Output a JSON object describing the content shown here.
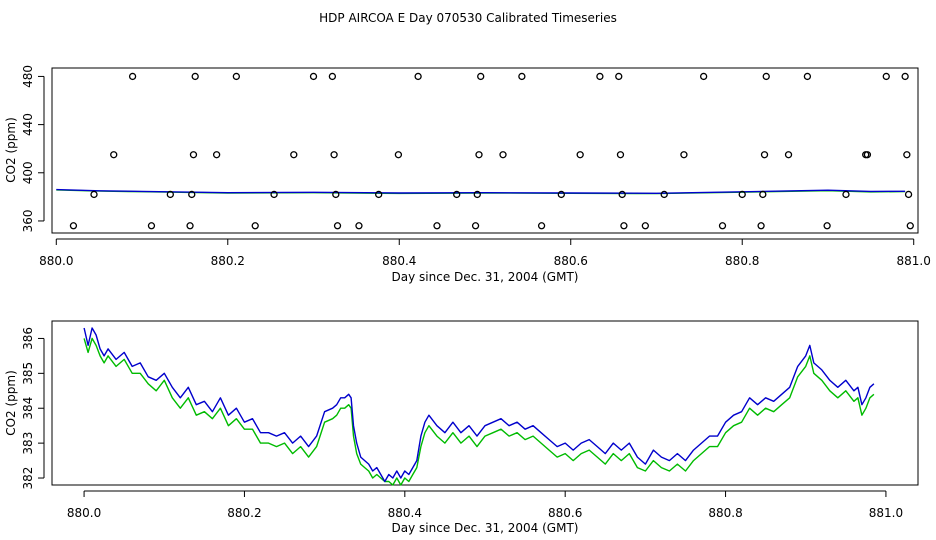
{
  "title": "HDP AIRCOA E  Day 070530  Calibrated Timeseries",
  "colors": {
    "blue": "#0000cc",
    "green": "#00bb00",
    "black": "#000000"
  },
  "chart_data": [
    {
      "type": "scatter",
      "xlabel": "Day since Dec. 31, 2004 (GMT)",
      "ylabel": "CO2 (ppm)",
      "xlim": [
        879.995,
        881.005
      ],
      "ylim": [
        350,
        487
      ],
      "xticks": [
        880.0,
        880.2,
        880.4,
        880.6,
        880.8,
        881.0
      ],
      "xtick_labels": [
        "880.0",
        "880.2",
        "880.4",
        "880.6",
        "880.8",
        "881.0"
      ],
      "yticks": [
        360,
        400,
        440,
        480
      ],
      "ytick_labels": [
        "360",
        "400",
        "440",
        "480"
      ],
      "points": [
        {
          "x": 880.02,
          "y": 356
        },
        {
          "x": 880.044,
          "y": 382
        },
        {
          "x": 880.067,
          "y": 415
        },
        {
          "x": 880.089,
          "y": 480
        },
        {
          "x": 880.111,
          "y": 356
        },
        {
          "x": 880.133,
          "y": 382
        },
        {
          "x": 880.156,
          "y": 356
        },
        {
          "x": 880.158,
          "y": 382
        },
        {
          "x": 880.16,
          "y": 415
        },
        {
          "x": 880.162,
          "y": 480
        },
        {
          "x": 880.187,
          "y": 415
        },
        {
          "x": 880.21,
          "y": 480
        },
        {
          "x": 880.232,
          "y": 356
        },
        {
          "x": 880.254,
          "y": 382
        },
        {
          "x": 880.277,
          "y": 415
        },
        {
          "x": 880.3,
          "y": 480
        },
        {
          "x": 880.322,
          "y": 480
        },
        {
          "x": 880.324,
          "y": 415
        },
        {
          "x": 880.326,
          "y": 382
        },
        {
          "x": 880.328,
          "y": 356
        },
        {
          "x": 880.353,
          "y": 356
        },
        {
          "x": 880.376,
          "y": 382
        },
        {
          "x": 880.399,
          "y": 415
        },
        {
          "x": 880.422,
          "y": 480
        },
        {
          "x": 880.444,
          "y": 356
        },
        {
          "x": 880.467,
          "y": 382
        },
        {
          "x": 880.489,
          "y": 356
        },
        {
          "x": 880.491,
          "y": 382
        },
        {
          "x": 880.493,
          "y": 415
        },
        {
          "x": 880.495,
          "y": 480
        },
        {
          "x": 880.521,
          "y": 415
        },
        {
          "x": 880.543,
          "y": 480
        },
        {
          "x": 880.566,
          "y": 356
        },
        {
          "x": 880.589,
          "y": 382
        },
        {
          "x": 880.611,
          "y": 415
        },
        {
          "x": 880.634,
          "y": 480
        },
        {
          "x": 880.656,
          "y": 480
        },
        {
          "x": 880.658,
          "y": 415
        },
        {
          "x": 880.66,
          "y": 382
        },
        {
          "x": 880.662,
          "y": 356
        },
        {
          "x": 880.687,
          "y": 356
        },
        {
          "x": 880.709,
          "y": 382
        },
        {
          "x": 880.732,
          "y": 415
        },
        {
          "x": 880.755,
          "y": 480
        },
        {
          "x": 880.777,
          "y": 356
        },
        {
          "x": 880.8,
          "y": 382
        },
        {
          "x": 880.822,
          "y": 356
        },
        {
          "x": 880.824,
          "y": 382
        },
        {
          "x": 880.826,
          "y": 415
        },
        {
          "x": 880.828,
          "y": 480
        },
        {
          "x": 880.854,
          "y": 415
        },
        {
          "x": 880.876,
          "y": 480
        },
        {
          "x": 880.899,
          "y": 356
        },
        {
          "x": 880.921,
          "y": 382
        },
        {
          "x": 880.944,
          "y": 415
        },
        {
          "x": 880.946,
          "y": 415
        },
        {
          "x": 880.968,
          "y": 480
        },
        {
          "x": 880.99,
          "y": 480
        },
        {
          "x": 880.992,
          "y": 415
        },
        {
          "x": 880.994,
          "y": 382
        },
        {
          "x": 880.996,
          "y": 356
        }
      ],
      "series": [
        {
          "color": "#0000cc",
          "x": [
            880.0,
            880.05,
            880.1,
            880.2,
            880.3,
            880.4,
            880.5,
            880.6,
            880.7,
            880.8,
            880.9,
            880.95,
            880.99
          ],
          "y": [
            386,
            385,
            384.5,
            383.5,
            383.8,
            383.2,
            383.5,
            383.2,
            383,
            384.2,
            385.5,
            384.5,
            384.6
          ]
        },
        {
          "color": "#00bb00",
          "x": [
            880.0,
            880.05,
            880.1,
            880.2,
            880.3,
            880.4,
            880.5,
            880.6,
            880.7,
            880.8,
            880.9,
            880.95,
            880.99
          ],
          "y": [
            385.8,
            384.8,
            384.3,
            383.2,
            383.5,
            382.9,
            383.2,
            383,
            382.7,
            383.9,
            385.1,
            384.1,
            384.4
          ]
        }
      ]
    },
    {
      "type": "line",
      "xlabel": "Day since Dec. 31, 2004 (GMT)",
      "ylabel": "CO2 (ppm)",
      "xlim": [
        879.96,
        881.04
      ],
      "ylim": [
        381.8,
        386.5
      ],
      "xticks": [
        880.0,
        880.2,
        880.4,
        880.6,
        880.8,
        881.0
      ],
      "xtick_labels": [
        "880.0",
        "880.2",
        "880.4",
        "880.6",
        "880.8",
        "881.0"
      ],
      "yticks": [
        382,
        383,
        384,
        385,
        386
      ],
      "ytick_labels": [
        "382",
        "383",
        "384",
        "385",
        "386"
      ],
      "series": [
        {
          "color": "#0000cc",
          "x": [
            880.0,
            880.005,
            880.01,
            880.015,
            880.02,
            880.025,
            880.03,
            880.04,
            880.05,
            880.06,
            880.07,
            880.08,
            880.09,
            880.1,
            880.11,
            880.12,
            880.13,
            880.14,
            880.15,
            880.16,
            880.17,
            880.18,
            880.19,
            880.2,
            880.21,
            880.22,
            880.23,
            880.24,
            880.25,
            880.26,
            880.27,
            880.28,
            880.29,
            880.3,
            880.31,
            880.315,
            880.32,
            880.325,
            880.33,
            880.333,
            880.336,
            880.34,
            880.345,
            880.35,
            880.355,
            880.36,
            880.365,
            880.37,
            880.375,
            880.38,
            880.385,
            880.39,
            880.395,
            880.4,
            880.405,
            880.41,
            880.415,
            880.42,
            880.425,
            880.43,
            880.44,
            880.45,
            880.46,
            880.47,
            880.48,
            880.49,
            880.5,
            880.51,
            880.52,
            880.53,
            880.54,
            880.55,
            880.56,
            880.57,
            880.58,
            880.59,
            880.6,
            880.61,
            880.62,
            880.63,
            880.64,
            880.65,
            880.66,
            880.67,
            880.68,
            880.69,
            880.7,
            880.71,
            880.72,
            880.73,
            880.74,
            880.75,
            880.76,
            880.77,
            880.78,
            880.79,
            880.8,
            880.81,
            880.82,
            880.83,
            880.84,
            880.85,
            880.86,
            880.87,
            880.88,
            880.89,
            880.9,
            880.905,
            880.91,
            880.92,
            880.93,
            880.94,
            880.95,
            880.96,
            880.965,
            880.97,
            880.975,
            880.98,
            880.985
          ],
          "y": [
            386.3,
            385.8,
            386.3,
            386.1,
            385.7,
            385.5,
            385.7,
            385.4,
            385.6,
            385.2,
            385.3,
            384.9,
            384.8,
            385.0,
            384.6,
            384.3,
            384.6,
            384.1,
            384.2,
            383.9,
            384.3,
            383.8,
            384.0,
            383.6,
            383.7,
            383.3,
            383.3,
            383.2,
            383.3,
            383.0,
            383.2,
            382.9,
            383.2,
            383.9,
            384.0,
            384.1,
            384.3,
            384.3,
            384.4,
            384.3,
            383.5,
            383.0,
            382.6,
            382.5,
            382.4,
            382.2,
            382.3,
            382.1,
            381.9,
            382.1,
            382.0,
            382.2,
            382.0,
            382.2,
            382.1,
            382.3,
            382.5,
            383.2,
            383.6,
            383.8,
            383.5,
            383.3,
            383.6,
            383.3,
            383.5,
            383.2,
            383.5,
            383.6,
            383.7,
            383.5,
            383.6,
            383.4,
            383.5,
            383.3,
            383.1,
            382.9,
            383.0,
            382.8,
            383.0,
            383.1,
            382.9,
            382.7,
            383.0,
            382.8,
            383.0,
            382.6,
            382.4,
            382.8,
            382.6,
            382.5,
            382.7,
            382.5,
            382.8,
            383.0,
            383.2,
            383.2,
            383.6,
            383.8,
            383.9,
            384.3,
            384.1,
            384.3,
            384.2,
            384.4,
            384.6,
            385.2,
            385.5,
            385.8,
            385.3,
            385.1,
            384.8,
            384.6,
            384.8,
            384.5,
            384.6,
            384.1,
            384.3,
            384.6,
            384.7
          ]
        },
        {
          "color": "#00bb00",
          "x": [
            880.0,
            880.005,
            880.01,
            880.015,
            880.02,
            880.025,
            880.03,
            880.04,
            880.05,
            880.06,
            880.07,
            880.08,
            880.09,
            880.1,
            880.11,
            880.12,
            880.13,
            880.14,
            880.15,
            880.16,
            880.17,
            880.18,
            880.19,
            880.2,
            880.21,
            880.22,
            880.23,
            880.24,
            880.25,
            880.26,
            880.27,
            880.28,
            880.29,
            880.3,
            880.31,
            880.315,
            880.32,
            880.325,
            880.33,
            880.333,
            880.336,
            880.34,
            880.345,
            880.35,
            880.355,
            880.36,
            880.365,
            880.37,
            880.375,
            880.38,
            880.385,
            880.39,
            880.395,
            880.4,
            880.405,
            880.41,
            880.415,
            880.42,
            880.425,
            880.43,
            880.44,
            880.45,
            880.46,
            880.47,
            880.48,
            880.49,
            880.5,
            880.51,
            880.52,
            880.53,
            880.54,
            880.55,
            880.56,
            880.57,
            880.58,
            880.59,
            880.6,
            880.61,
            880.62,
            880.63,
            880.64,
            880.65,
            880.66,
            880.67,
            880.68,
            880.69,
            880.7,
            880.71,
            880.72,
            880.73,
            880.74,
            880.75,
            880.76,
            880.77,
            880.78,
            880.79,
            880.8,
            880.81,
            880.82,
            880.83,
            880.84,
            880.85,
            880.86,
            880.87,
            880.88,
            880.89,
            880.9,
            880.905,
            880.91,
            880.92,
            880.93,
            880.94,
            880.95,
            880.96,
            880.965,
            880.97,
            880.975,
            880.98,
            880.985
          ],
          "y": [
            386.0,
            385.6,
            386.0,
            385.8,
            385.5,
            385.3,
            385.5,
            385.2,
            385.4,
            385.0,
            385.0,
            384.7,
            384.5,
            384.8,
            384.3,
            384.0,
            384.3,
            383.8,
            383.9,
            383.7,
            384.0,
            383.5,
            383.7,
            383.4,
            383.4,
            383.0,
            383.0,
            382.9,
            383.0,
            382.7,
            382.9,
            382.6,
            382.9,
            383.6,
            383.7,
            383.8,
            384.0,
            384.0,
            384.1,
            384.0,
            383.2,
            382.7,
            382.4,
            382.3,
            382.2,
            382.0,
            382.1,
            382.0,
            381.9,
            381.9,
            381.8,
            382.0,
            381.8,
            382.0,
            381.9,
            382.1,
            382.3,
            382.9,
            383.3,
            383.5,
            383.2,
            383.0,
            383.3,
            383.0,
            383.2,
            382.9,
            383.2,
            383.3,
            383.4,
            383.2,
            383.3,
            383.1,
            383.2,
            383.0,
            382.8,
            382.6,
            382.7,
            382.5,
            382.7,
            382.8,
            382.6,
            382.4,
            382.7,
            382.5,
            382.7,
            382.3,
            382.2,
            382.5,
            382.3,
            382.2,
            382.4,
            382.2,
            382.5,
            382.7,
            382.9,
            382.9,
            383.3,
            383.5,
            383.6,
            384.0,
            383.8,
            384.0,
            383.9,
            384.1,
            384.3,
            384.9,
            385.2,
            385.5,
            385.0,
            384.8,
            384.5,
            384.3,
            384.5,
            384.2,
            384.3,
            383.8,
            384.0,
            384.3,
            384.4
          ]
        }
      ]
    }
  ]
}
